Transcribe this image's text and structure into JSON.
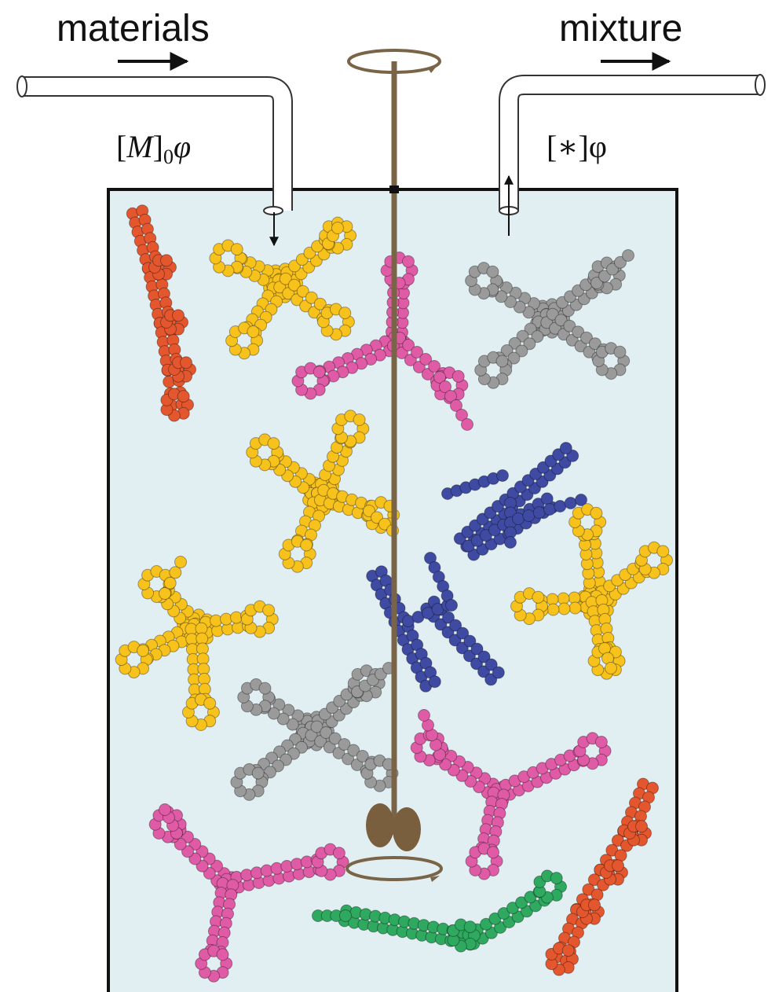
{
  "labels": {
    "inlet_title": "materials",
    "outlet_title": "mixture",
    "inlet_flow_open": "[",
    "inlet_flow_var": "M",
    "inlet_flow_close": "]",
    "inlet_flow_sub": "0",
    "inlet_flow_phi": "φ",
    "outlet_flow": "[∗]φ"
  },
  "colors": {
    "tank_fill": "#e1eff2",
    "tank_stroke": "#111111",
    "shaft": "#7a6447",
    "paddle": "#7a5f3f",
    "red": "#e4572e",
    "yellow": "#f7c21c",
    "pink": "#e05ba6",
    "gray": "#9a9a9a",
    "blue": "#3f4aa3",
    "green": "#2ea95f"
  },
  "molecules": [
    {
      "name": "red-strand-molecule-1",
      "color": "red"
    },
    {
      "name": "yellow-cross-molecule-1",
      "color": "yellow"
    },
    {
      "name": "pink-y-molecule-1",
      "color": "pink"
    },
    {
      "name": "gray-cross-molecule-1",
      "color": "gray"
    },
    {
      "name": "yellow-cross-molecule-2",
      "color": "yellow"
    },
    {
      "name": "blue-h-molecule-1",
      "color": "blue"
    },
    {
      "name": "yellow-cross-molecule-3",
      "color": "yellow"
    },
    {
      "name": "blue-h-molecule-2",
      "color": "blue"
    },
    {
      "name": "yellow-cross-molecule-4",
      "color": "yellow"
    },
    {
      "name": "gray-cross-molecule-2",
      "color": "gray"
    },
    {
      "name": "pink-y-molecule-2",
      "color": "pink"
    },
    {
      "name": "pink-y-molecule-3",
      "color": "pink"
    },
    {
      "name": "green-strand-molecule-1",
      "color": "green"
    },
    {
      "name": "red-strand-molecule-2",
      "color": "red"
    }
  ]
}
